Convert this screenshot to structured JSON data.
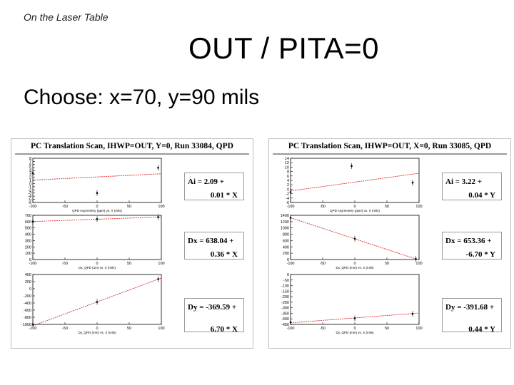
{
  "header_tag": "On the Laser Table",
  "slide_title": "OUT / PITA=0",
  "subtitle": "Choose: x=70, y=90 mils",
  "panels": [
    {
      "title": "PC Translation Scan, IHWP=OUT, Y=0, Run 33084, QPD"
    },
    {
      "title": "PC Translation Scan, IHWP=OUT, X=0, Run 33085, QPD"
    }
  ],
  "fits": [
    {
      "l1": "Ai =    2.09 +",
      "l2": "0.01 * X"
    },
    {
      "l1": "Dx =  638.04 +",
      "l2": "0.36 * X"
    },
    {
      "l1": "Dy = -369.59 +",
      "l2": "6.70 * X"
    },
    {
      "l1": "Ai =    3.22 +",
      "l2": "0.04 * Y"
    },
    {
      "l1": "Dx =  653.36 +",
      "l2": "-6.70 * Y"
    },
    {
      "l1": "Dy = -391.68 +",
      "l2": "0.44 * Y"
    }
  ],
  "chart_data": [
    {
      "type": "scatter",
      "title": "",
      "xlabel": "QPD Asymmetry (ppm) vs. X (mils)",
      "ylabel": "",
      "xlim": [
        -100,
        100
      ],
      "ylim": [
        -6,
        8
      ],
      "x_ticks": [
        -100,
        -50,
        0,
        50,
        100
      ],
      "y_ticks": [
        -6,
        -5,
        -4,
        -3,
        -2,
        -1,
        0,
        1,
        2,
        3,
        4,
        5,
        6,
        7,
        8
      ],
      "y_tick_labels": [
        "-6",
        "-5",
        "-4",
        "-3",
        "-2",
        "-1",
        "0",
        "1",
        "2",
        "3",
        "4",
        "5",
        "6",
        "7",
        "8"
      ],
      "points": [
        {
          "x": -100,
          "y": 3.3
        },
        {
          "x": 0,
          "y": -3.0
        },
        {
          "x": 95,
          "y": 5.0
        }
      ],
      "fit": {
        "a": 2.09,
        "b": 0.01
      },
      "color": "#e03030"
    },
    {
      "type": "scatter",
      "title": "",
      "xlabel": "Dx_QPD (um) vs. X (mils)",
      "ylabel": "",
      "xlim": [
        -100,
        100
      ],
      "ylim": [
        0,
        700
      ],
      "x_ticks": [
        -100,
        -50,
        0,
        50,
        100
      ],
      "y_ticks": [
        0,
        100,
        200,
        300,
        400,
        500,
        600,
        700
      ],
      "points": [
        {
          "x": -100,
          "y": 600
        },
        {
          "x": 0,
          "y": 640
        },
        {
          "x": 95,
          "y": 672
        }
      ],
      "fit": {
        "a": 638.04,
        "b": 0.36
      },
      "color": "#e03030"
    },
    {
      "type": "scatter",
      "title": "",
      "xlabel": "Dy_QPD (mm) vs. X (mils)",
      "ylabel": "",
      "xlim": [
        -100,
        100
      ],
      "ylim": [
        -1000,
        400
      ],
      "x_ticks": [
        -100,
        -50,
        0,
        50,
        100
      ],
      "y_ticks": [
        -1000,
        -800,
        -600,
        -400,
        -200,
        0,
        200,
        400
      ],
      "points": [
        {
          "x": -100,
          "y": -1000
        },
        {
          "x": 0,
          "y": -370
        },
        {
          "x": 95,
          "y": 270
        }
      ],
      "fit": {
        "a": -369.59,
        "b": 6.7
      },
      "color": "#e03030"
    },
    {
      "type": "scatter",
      "title": "",
      "xlabel": "QPD Asymmetry (ppm) vs. X (mils)",
      "ylabel": "",
      "xlim": [
        -100,
        100
      ],
      "ylim": [
        -6,
        14
      ],
      "x_ticks": [
        -100,
        -50,
        0,
        50,
        100
      ],
      "y_ticks": [
        -6,
        -4,
        -2,
        0,
        2,
        4,
        6,
        8,
        10,
        12,
        14
      ],
      "points": [
        {
          "x": -100,
          "y": -1.3
        },
        {
          "x": -5,
          "y": 10.5
        },
        {
          "x": 90,
          "y": 3.0
        }
      ],
      "fit": {
        "a": 3.22,
        "b": 0.04
      },
      "color": "#e03030"
    },
    {
      "type": "scatter",
      "title": "",
      "xlabel": "Dx_QPD (mm) vs. X (mils)",
      "ylabel": "",
      "xlim": [
        -100,
        100
      ],
      "ylim": [
        0,
        1400
      ],
      "x_ticks": [
        -100,
        -50,
        0,
        50,
        100
      ],
      "y_ticks": [
        0,
        200,
        400,
        600,
        800,
        1000,
        1200,
        1400
      ],
      "points": [
        {
          "x": -100,
          "y": 1320
        },
        {
          "x": 0,
          "y": 660
        },
        {
          "x": 95,
          "y": 20
        }
      ],
      "fit": {
        "a": 653.36,
        "b": -6.7
      },
      "color": "#e03030"
    },
    {
      "type": "scatter",
      "title": "",
      "xlabel": "Dy_QPD (mm) vs. X (mils)",
      "ylabel": "",
      "xlim": [
        -100,
        100
      ],
      "ylim": [
        -450,
        0
      ],
      "x_ticks": [
        -100,
        -50,
        0,
        50,
        100
      ],
      "y_ticks": [
        -450,
        -400,
        -350,
        -300,
        -250,
        -200,
        -150,
        -100,
        -50,
        0
      ],
      "points": [
        {
          "x": -100,
          "y": -430
        },
        {
          "x": 0,
          "y": -395
        },
        {
          "x": 90,
          "y": -355
        }
      ],
      "fit": {
        "a": -391.68,
        "b": 0.44
      },
      "color": "#e03030"
    }
  ]
}
